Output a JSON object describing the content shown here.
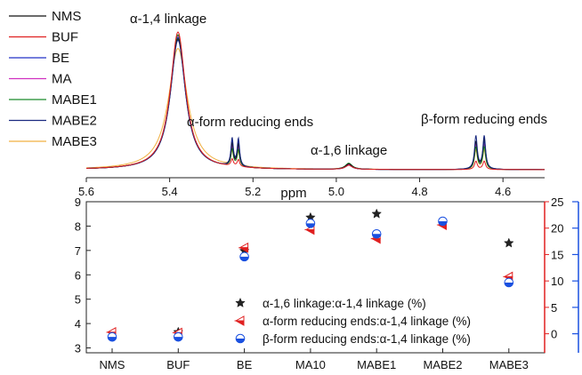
{
  "colors": {
    "NMS": "#111111",
    "BUF": "#e02020",
    "BE": "#2030c8",
    "MA": "#d030c0",
    "MABE1": "#1a8a2a",
    "MABE2": "#1a2a80",
    "MABE3": "#f0b040",
    "right_axis_red": "#e02020",
    "right_axis_blue": "#1a50e0"
  },
  "chart_data": [
    {
      "type": "line",
      "title": "",
      "xlabel": "ppm",
      "ylabel": "",
      "x_reversed": true,
      "xlim": [
        5.6,
        4.5
      ],
      "x_ticks": [
        "5.6",
        "5.4",
        "5.2",
        "5.0",
        "4.8",
        "4.6"
      ],
      "legend": [
        "NMS",
        "BUF",
        "BE",
        "MA",
        "MABE1",
        "MABE2",
        "MABE3"
      ],
      "legend_position": "top-left",
      "annotations": [
        {
          "text": "α-1,4 linkage",
          "x": 5.38
        },
        {
          "text": "α-form reducing ends",
          "x": 5.23
        },
        {
          "text": "α-1,6 linkage",
          "x": 4.97
        },
        {
          "text": "β-form reducing ends",
          "x": 4.65
        }
      ],
      "peaks": [
        {
          "ppm": 5.38,
          "width": 0.022,
          "heights": {
            "NMS": 0.95,
            "BUF": 1.0,
            "BE": 0.96,
            "MA": 0.97,
            "MABE1": 0.98,
            "MABE2": 0.94,
            "MABE3": 0.88
          }
        },
        {
          "ppm": 5.25,
          "width": 0.0035,
          "heights": {
            "NMS": 0.16,
            "BUF": 0.05,
            "BE": 0.18,
            "MA": 0.14,
            "MABE1": 0.12,
            "MABE2": 0.2,
            "MABE3": 0.1
          }
        },
        {
          "ppm": 5.235,
          "width": 0.0035,
          "heights": {
            "NMS": 0.16,
            "BUF": 0.05,
            "BE": 0.18,
            "MA": 0.14,
            "MABE1": 0.12,
            "MABE2": 0.2,
            "MABE3": 0.1
          }
        },
        {
          "ppm": 4.97,
          "width": 0.01,
          "heights": {
            "NMS": 0.04,
            "BUF": 0.03,
            "BE": 0.03,
            "MA": 0.035,
            "MABE1": 0.045,
            "MABE2": 0.03,
            "MABE3": 0.03
          }
        },
        {
          "ppm": 4.665,
          "width": 0.004,
          "heights": {
            "NMS": 0.2,
            "BUF": 0.06,
            "BE": 0.2,
            "MA": 0.18,
            "MABE1": 0.16,
            "MABE2": 0.24,
            "MABE3": 0.14
          }
        },
        {
          "ppm": 4.645,
          "width": 0.004,
          "heights": {
            "NMS": 0.22,
            "BUF": 0.06,
            "BE": 0.2,
            "MA": 0.18,
            "MABE1": 0.16,
            "MABE2": 0.24,
            "MABE3": 0.14
          }
        }
      ]
    },
    {
      "type": "scatter",
      "title": "",
      "xlabel": "",
      "ylabel": "",
      "categories": [
        "NMS",
        "BUF",
        "BE",
        "MA10",
        "MABE1",
        "MABE2",
        "MABE3"
      ],
      "y_left_lim": [
        2.8,
        9
      ],
      "y_left_ticks": [
        3,
        4,
        5,
        6,
        7,
        8,
        9
      ],
      "y_right_lim": [
        -3.6,
        25
      ],
      "y_right_ticks": [
        0,
        5,
        10,
        15,
        20,
        25
      ],
      "legend_position": "bottom-right",
      "series": [
        {
          "name": "α-1,6 linkage:α-1,4 linkage (%)",
          "marker": "star",
          "axis": "left",
          "values": [
            null,
            3.65,
            6.98,
            8.35,
            8.5,
            null,
            7.3
          ]
        },
        {
          "name": "α-form reducing ends:α-1,4 linkage (%)",
          "marker": "triangle-left",
          "axis": "right",
          "values": [
            0.3,
            0.2,
            16.3,
            19.7,
            18.0,
            20.6,
            10.8
          ]
        },
        {
          "name": "β-form reducing ends:α-1,4 linkage (%)",
          "marker": "half-circle",
          "axis": "right",
          "values": [
            -0.6,
            -0.6,
            14.6,
            20.9,
            18.9,
            21.3,
            9.7
          ]
        }
      ]
    }
  ]
}
